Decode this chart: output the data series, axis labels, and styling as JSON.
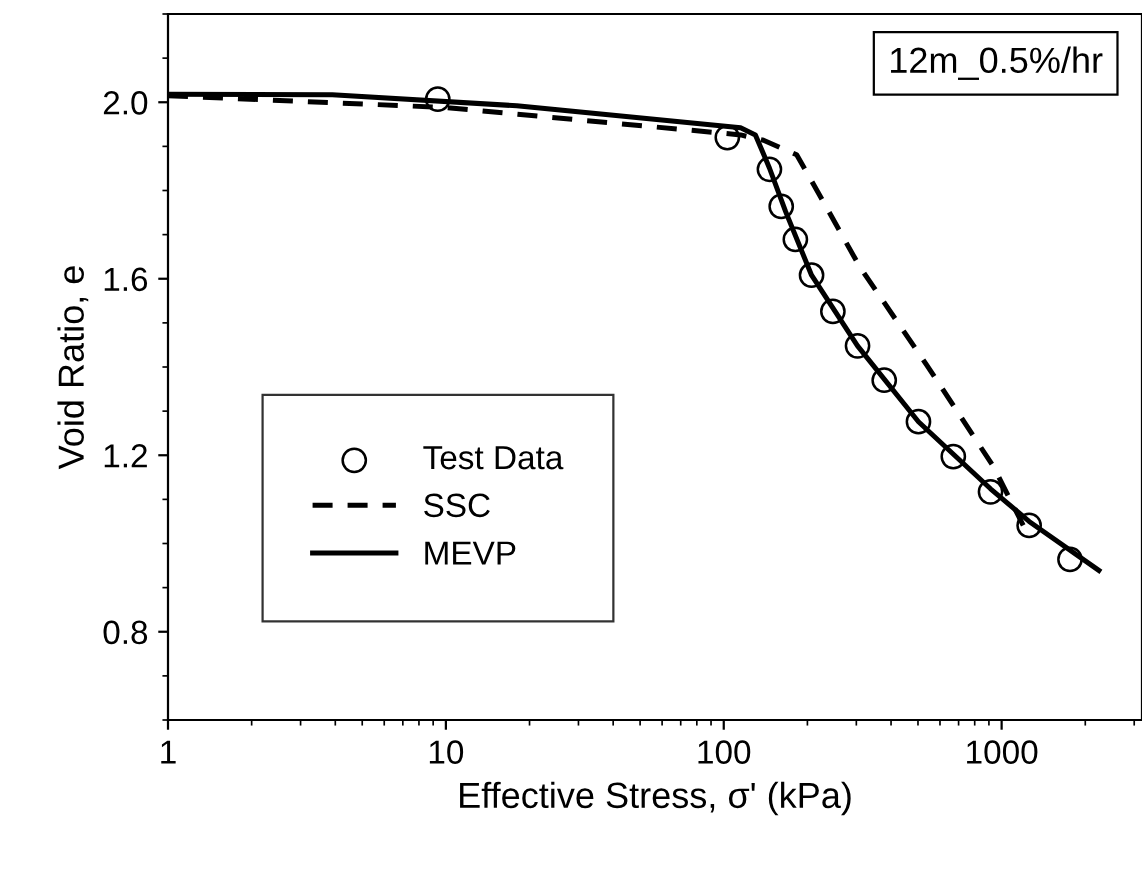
{
  "chart_data": {
    "type": "line",
    "xlabel": "Effective Stress, σ' (kPa)",
    "ylabel": "Void Ratio, e",
    "annotations": [
      "12m_0.5%/hr"
    ],
    "log": "x",
    "xlim": [
      1,
      3200
    ],
    "xticks": [
      1,
      10,
      100,
      1000
    ],
    "ylim": [
      0.6,
      2.2
    ],
    "yticks": [
      0.8,
      1.2,
      1.6,
      {
        "value": 2,
        "label": "2.0"
      }
    ],
    "grid": false,
    "legend": "left",
    "series": [
      {
        "name": "Test Data",
        "type": "scatter",
        "marker": "circle",
        "color": "#000000",
        "x": [
          9.35,
          103,
          146,
          161,
          181,
          207,
          247,
          303,
          378,
          502,
          670,
          912,
          1256,
          1762
        ],
        "values": [
          2.007,
          1.92,
          1.848,
          1.764,
          1.689,
          1.608,
          1.526,
          1.448,
          1.37,
          1.276,
          1.197,
          1.117,
          1.041,
          0.964
        ]
      },
      {
        "name": "SSC",
        "line_style": "dashed",
        "color": "#000000",
        "x": [
          1,
          10,
          115,
          139,
          183,
          227,
          308,
          537,
          935,
          1196
        ],
        "values": [
          2.015,
          1.988,
          1.926,
          1.914,
          1.881,
          1.777,
          1.628,
          1.405,
          1.174,
          1.041
        ]
      },
      {
        "name": "MEVP",
        "line_style": "solid",
        "color": "#000000",
        "x": [
          1,
          3.9,
          18,
          115,
          130,
          146,
          167,
          207,
          303,
          502,
          912,
          1256,
          2239
        ],
        "values": [
          2.018,
          2.017,
          1.992,
          1.942,
          1.926,
          1.851,
          1.752,
          1.608,
          1.448,
          1.276,
          1.124,
          1.05,
          0.939
        ]
      }
    ]
  }
}
